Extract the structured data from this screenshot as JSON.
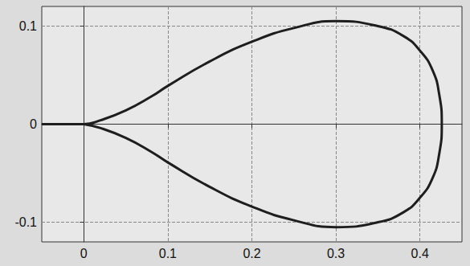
{
  "chart_data": {
    "type": "line",
    "color": "#1e1e1e",
    "grid": true,
    "xlim": [
      -0.05,
      0.45
    ],
    "ylim": [
      -0.12,
      0.12
    ],
    "xticks": [
      0,
      0.1,
      0.2,
      0.3,
      0.4
    ],
    "yticks": [
      -0.1,
      0,
      0.1
    ],
    "x": [
      -0.05,
      -0.02,
      0,
      0.02,
      0.05,
      0.08,
      0.1,
      0.15,
      0.2,
      0.25,
      0.3,
      0.35,
      0.38,
      0.4,
      0.415,
      0.423,
      0.426,
      0.423,
      0.415,
      0.4,
      0.38,
      0.35,
      0.3,
      0.25,
      0.2,
      0.15,
      0.1,
      0.08,
      0.05,
      0.02,
      0
    ],
    "values": [
      0,
      0,
      0,
      0.004,
      0.014,
      0.028,
      0.039,
      0.064,
      0.084,
      0.098,
      0.105,
      0.1,
      0.09,
      0.075,
      0.055,
      0.03,
      0,
      -0.03,
      -0.055,
      -0.075,
      -0.09,
      -0.1,
      -0.105,
      -0.098,
      -0.084,
      -0.064,
      -0.039,
      -0.028,
      -0.014,
      -0.004,
      0
    ]
  }
}
